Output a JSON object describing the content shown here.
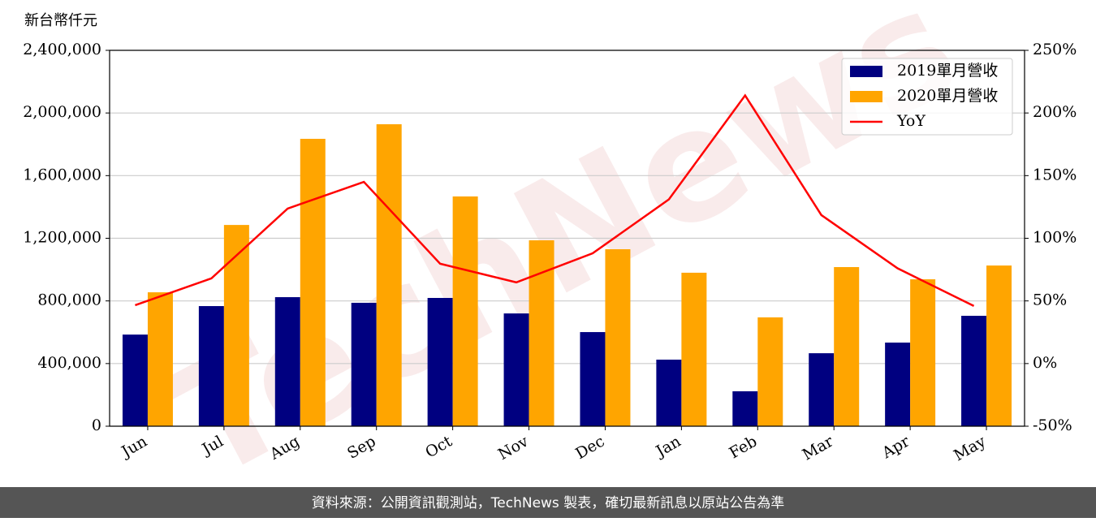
{
  "chart_data": {
    "type": "bar",
    "y_label": "新台幣仟元",
    "watermark": "TechNews",
    "footer": "資料來源：公開資訊觀測站，TechNews 製表，確切最新訊息以原站公告為準",
    "categories": [
      "Jun",
      "Jul",
      "Aug",
      "Sep",
      "Oct",
      "Nov",
      "Dec",
      "Jan",
      "Feb",
      "Mar",
      "Apr",
      "May"
    ],
    "series": [
      {
        "name": "2019單月營收",
        "color": "#000080",
        "values": [
          585000,
          767000,
          824000,
          788000,
          819000,
          720000,
          601000,
          425000,
          223000,
          466000,
          534000,
          705000
        ]
      },
      {
        "name": "2020單月營收",
        "color": "#ffa500",
        "values": [
          855000,
          1285000,
          1835000,
          1928000,
          1467000,
          1187000,
          1130000,
          980000,
          695000,
          1016000,
          938000,
          1026000
        ]
      },
      {
        "name": "YoY",
        "color": "#ff0000",
        "type": "line",
        "axis": "y2",
        "values": [
          46.6,
          68,
          123.7,
          145,
          79.7,
          64.8,
          88,
          131,
          214,
          118.5,
          76,
          46
        ]
      }
    ],
    "ylim": [
      0,
      2400000
    ],
    "yticks": [
      0,
      {
        "value": 400000,
        "label": "400,000"
      },
      {
        "value": 800000,
        "label": "800,000"
      },
      {
        "value": 1200000,
        "label": "1,200,000"
      },
      {
        "value": 1600000,
        "label": "1,600,000"
      },
      {
        "value": 2000000,
        "label": "2,000,000"
      },
      {
        "value": 2400000,
        "label": "2,400,000"
      }
    ],
    "y2lim": [
      -50,
      250
    ],
    "y2ticks": [
      {
        "value": -50,
        "label": "-50%"
      },
      {
        "value": 0,
        "label": "0%"
      },
      {
        "value": 50,
        "label": "50%"
      },
      {
        "value": 100,
        "label": "100%"
      },
      {
        "value": 150,
        "label": "150%"
      },
      {
        "value": 200,
        "label": "200%"
      },
      {
        "value": 250,
        "label": "250%"
      }
    ],
    "grid": true,
    "legend": "upper-right"
  }
}
